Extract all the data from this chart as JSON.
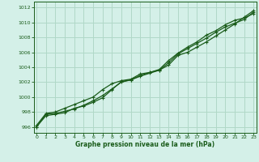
{
  "title": "Graphe pression niveau de la mer (hPa)",
  "background_color": "#d4f0e8",
  "grid_color": "#b0d8c8",
  "line_color": "#1a5c1a",
  "xlim": [
    -0.3,
    23.3
  ],
  "ylim": [
    995.2,
    1012.8
  ],
  "yticks": [
    996,
    998,
    1000,
    1002,
    1004,
    1006,
    1008,
    1010,
    1012
  ],
  "xticks": [
    0,
    1,
    2,
    3,
    4,
    5,
    6,
    7,
    8,
    9,
    10,
    11,
    12,
    13,
    14,
    15,
    16,
    17,
    18,
    19,
    20,
    21,
    22,
    23
  ],
  "line1": [
    996.0,
    997.7,
    997.8,
    998.1,
    998.4,
    998.9,
    999.5,
    1000.2,
    1001.1,
    1002.0,
    1002.3,
    1002.8,
    1003.2,
    1003.6,
    1004.3,
    1005.6,
    1006.0,
    1006.7,
    1007.4,
    1008.2,
    1009.0,
    1009.8,
    1010.7,
    1011.6
  ],
  "line2": [
    996.2,
    997.8,
    998.0,
    998.5,
    999.0,
    999.5,
    1000.0,
    1001.0,
    1001.8,
    1002.2,
    1002.4,
    1003.1,
    1003.3,
    1003.6,
    1004.6,
    1005.8,
    1006.5,
    1007.2,
    1007.9,
    1008.7,
    1009.4,
    1009.9,
    1010.4,
    1011.4
  ],
  "line3": [
    996.0,
    997.5,
    997.7,
    997.9,
    998.5,
    998.8,
    999.3,
    999.9,
    1001.0,
    1002.1,
    1002.3,
    1002.9,
    1003.3,
    1003.7,
    1004.9,
    1005.9,
    1006.7,
    1007.4,
    1008.3,
    1008.9,
    1009.7,
    1010.3,
    1010.6,
    1011.2
  ]
}
